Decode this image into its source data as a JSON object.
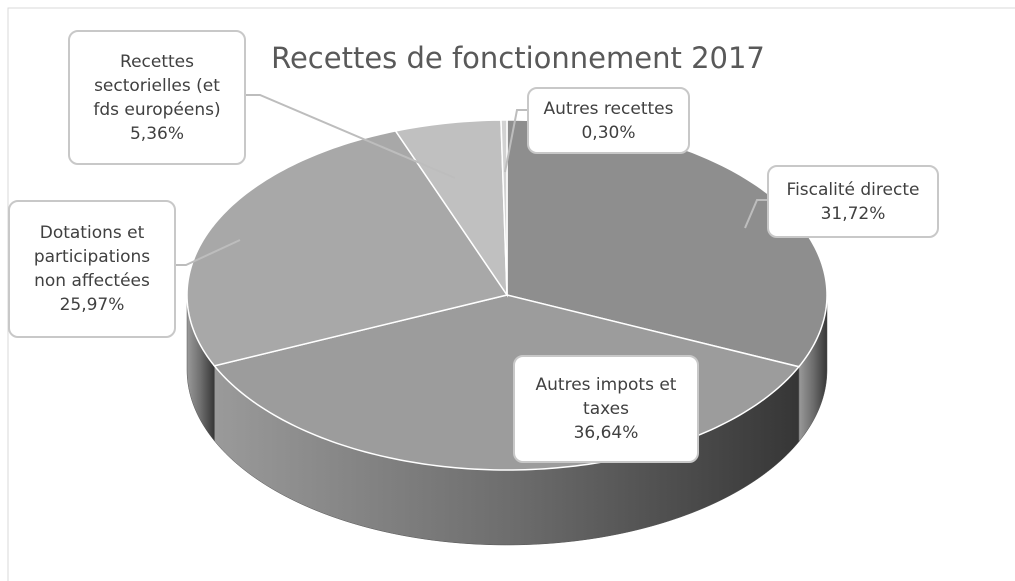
{
  "chart_data": {
    "type": "pie",
    "title": "Recettes de fonctionnement 2017",
    "categories": [
      "Fiscalité directe",
      "Autres impots et taxes",
      "Dotations et participations non affectées",
      "Recettes sectorielles (et fds européens)",
      "Autres recettes"
    ],
    "values": [
      31.72,
      36.64,
      25.97,
      5.36,
      0.3
    ],
    "value_labels": [
      "31,72%",
      "36,64%",
      "25,97%",
      "5,36%",
      "0,30%"
    ],
    "colors": [
      "#8e8e8e",
      "#9c9c9c",
      "#a8a8a8",
      "#c0c0c0",
      "#d2d2d2"
    ]
  }
}
